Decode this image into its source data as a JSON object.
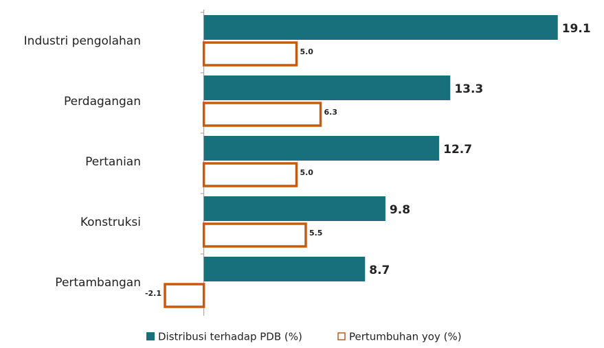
{
  "chart_data": {
    "type": "barh",
    "categories": [
      "Industri pengolahan",
      "Perdagangan",
      "Pertanian",
      "Konstruksi",
      "Pertambangan"
    ],
    "series": [
      {
        "name": "Distribusi terhadap PDB (%)",
        "color": "#17707c",
        "values": [
          19.1,
          13.3,
          12.7,
          9.8,
          8.7
        ],
        "value_labels": [
          "19.1",
          "13.3",
          "12.7",
          "9.8",
          "8.7"
        ]
      },
      {
        "name": "Pertumbuhan yoy (%)",
        "color": "#c55a11",
        "values": [
          5.0,
          6.3,
          5.0,
          5.5,
          -2.1
        ],
        "value_labels": [
          "5.0",
          "6.3",
          "5.0",
          "5.5",
          "-2.1"
        ]
      }
    ],
    "xlim": [
      -11,
      20
    ],
    "legend": "bottom"
  }
}
